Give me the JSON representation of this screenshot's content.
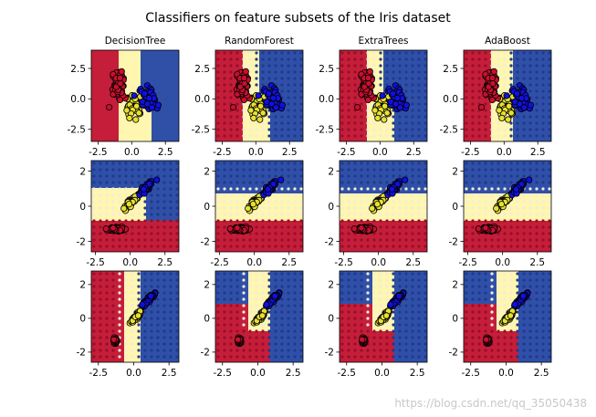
{
  "figure": {
    "title": "Classifiers on feature subsets of the Iris dataset",
    "watermark": "https://blog.csdn.net/qq_35050438"
  },
  "colors": {
    "class_0": "#c8102e",
    "class_1": "#e8e030",
    "class_2": "#1010e0",
    "region_0": "#c41e3a",
    "region_1": "#fff6b0",
    "region_2": "#3050a8",
    "grid_dot_0": "#9a0e28",
    "grid_dot_1": "#f4ecd8",
    "grid_dot_2": "#1f3a90"
  },
  "chart_data": [
    {
      "type": "scatter",
      "title": "DecisionTree",
      "xticks": [
        "-2.5",
        "0.0",
        "2.5"
      ],
      "yticks": [
        "-2.5",
        "0.0",
        "2.5"
      ],
      "xlim": [
        -3,
        3.5
      ],
      "ylim": [
        -3.5,
        4
      ]
    },
    {
      "type": "scatter",
      "title": "RandomForest",
      "xticks": [
        "-2.5",
        "0.0",
        "2.5"
      ],
      "yticks": [
        "-2.5",
        "0.0",
        "2.5"
      ],
      "xlim": [
        -3,
        3.5
      ],
      "ylim": [
        -3.5,
        4
      ]
    },
    {
      "type": "scatter",
      "title": "ExtraTrees",
      "xticks": [
        "-2.5",
        "0.0",
        "2.5"
      ],
      "yticks": [
        "-2.5",
        "0.0",
        "2.5"
      ],
      "xlim": [
        -3,
        3.5
      ],
      "ylim": [
        -3.5,
        4
      ]
    },
    {
      "type": "scatter",
      "title": "AdaBoost",
      "xticks": [
        "-2.5",
        "0.0",
        "2.5"
      ],
      "yticks": [
        "-2.5",
        "0.0",
        "2.5"
      ],
      "xlim": [
        -3,
        3.5
      ],
      "ylim": [
        -3.5,
        4
      ]
    },
    {
      "type": "scatter",
      "title": "",
      "xticks": [
        "-2.5",
        "0.0",
        "2.5"
      ],
      "yticks": [
        "-2",
        "0",
        "2"
      ],
      "xlim": [
        -2.8,
        3.5
      ],
      "ylim": [
        -2.6,
        2.6
      ]
    },
    {
      "type": "scatter",
      "title": "",
      "xticks": [
        "-2.5",
        "0.0",
        "2.5"
      ],
      "yticks": [
        "-2",
        "0",
        "2"
      ],
      "xlim": [
        -2.8,
        3.5
      ],
      "ylim": [
        -2.6,
        2.6
      ]
    },
    {
      "type": "scatter",
      "title": "",
      "xticks": [
        "-2.5",
        "0.0",
        "2.5"
      ],
      "yticks": [
        "-2",
        "0",
        "2"
      ],
      "xlim": [
        -2.8,
        3.5
      ],
      "ylim": [
        -2.6,
        2.6
      ]
    },
    {
      "type": "scatter",
      "title": "",
      "xticks": [
        "-2.5",
        "0.0",
        "2.5"
      ],
      "yticks": [
        "-2",
        "0",
        "2"
      ],
      "xlim": [
        -2.8,
        3.5
      ],
      "ylim": [
        -2.6,
        2.6
      ]
    },
    {
      "type": "scatter",
      "title": "",
      "xticks": [
        "-2.5",
        "0.0",
        "2.5"
      ],
      "yticks": [
        "-2",
        "0",
        "2"
      ],
      "xlim": [
        -3,
        3.2
      ],
      "ylim": [
        -2.6,
        2.8
      ]
    },
    {
      "type": "scatter",
      "title": "",
      "xticks": [
        "-2.5",
        "0.0",
        "2.5"
      ],
      "yticks": [
        "-2",
        "0",
        "2"
      ],
      "xlim": [
        -3,
        3.2
      ],
      "ylim": [
        -2.6,
        2.8
      ]
    },
    {
      "type": "scatter",
      "title": "",
      "xticks": [
        "-2.5",
        "0.0",
        "2.5"
      ],
      "yticks": [
        "-2",
        "0",
        "2"
      ],
      "xlim": [
        -3,
        3.2
      ],
      "ylim": [
        -2.6,
        2.8
      ]
    },
    {
      "type": "scatter",
      "title": "",
      "xticks": [
        "-2.5",
        "0.0",
        "2.5"
      ],
      "yticks": [
        "-2",
        "0",
        "2"
      ],
      "xlim": [
        -3,
        3.2
      ],
      "ylim": [
        -2.6,
        2.8
      ]
    }
  ]
}
